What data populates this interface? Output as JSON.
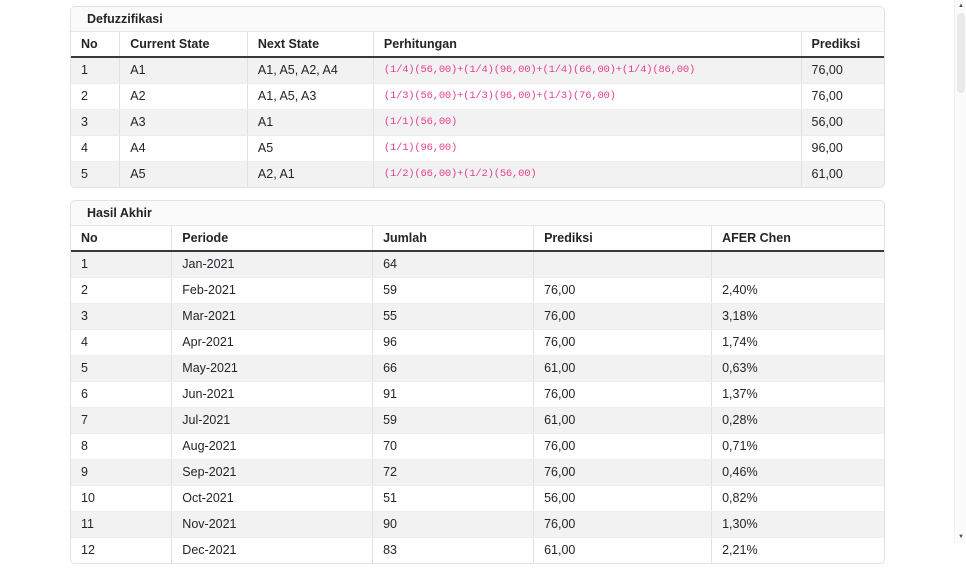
{
  "page": {
    "background": "#ffffff",
    "code_text_color": "#e83e8c",
    "stripe_color": "#f2f2f2"
  },
  "tables": [
    {
      "id": "defuzzifikasi",
      "title": "Defuzzifikasi",
      "columns": [
        "No",
        "Current State",
        "Next State",
        "Perhitungan",
        "Prediksi"
      ],
      "col_widths": [
        "6%",
        "15.7%",
        "15.5%",
        "52.6%",
        "10.2%"
      ],
      "code_col": 3,
      "rows": [
        [
          "1",
          "A1",
          "A1, A5, A2, A4",
          "(1/4)(56,00)+(1/4)(96,00)+(1/4)(66,00)+(1/4)(86,00)",
          "76,00"
        ],
        [
          "2",
          "A2",
          "A1, A5, A3",
          "(1/3)(56,00)+(1/3)(96,00)+(1/3)(76,00)",
          "76,00"
        ],
        [
          "3",
          "A3",
          "A1",
          "(1/1)(56,00)",
          "56,00"
        ],
        [
          "4",
          "A4",
          "A5",
          "(1/1)(96,00)",
          "96,00"
        ],
        [
          "5",
          "A5",
          "A2, A1",
          "(1/2)(66,00)+(1/2)(56,00)",
          "61,00"
        ]
      ]
    },
    {
      "id": "hasil-akhir",
      "title": "Hasil Akhir",
      "columns": [
        "No",
        "Periode",
        "Jumlah",
        "Prediksi",
        "AFER Chen"
      ],
      "col_widths": [
        "12.4%",
        "24.7%",
        "19.8%",
        "21.9%",
        "21.2%"
      ],
      "code_col": -1,
      "rows": [
        [
          "1",
          "Jan-2021",
          "64",
          "",
          ""
        ],
        [
          "2",
          "Feb-2021",
          "59",
          "76,00",
          "2,40%"
        ],
        [
          "3",
          "Mar-2021",
          "55",
          "76,00",
          "3,18%"
        ],
        [
          "4",
          "Apr-2021",
          "96",
          "76,00",
          "1,74%"
        ],
        [
          "5",
          "May-2021",
          "66",
          "61,00",
          "0,63%"
        ],
        [
          "6",
          "Jun-2021",
          "91",
          "76,00",
          "1,37%"
        ],
        [
          "7",
          "Jul-2021",
          "59",
          "61,00",
          "0,28%"
        ],
        [
          "8",
          "Aug-2021",
          "70",
          "76,00",
          "0,71%"
        ],
        [
          "9",
          "Sep-2021",
          "72",
          "76,00",
          "0,46%"
        ],
        [
          "10",
          "Oct-2021",
          "51",
          "56,00",
          "0,82%"
        ],
        [
          "11",
          "Nov-2021",
          "90",
          "76,00",
          "1,30%"
        ],
        [
          "12",
          "Dec-2021",
          "83",
          "61,00",
          "2,21%"
        ]
      ]
    }
  ],
  "scrollbar": {
    "up_arrow": "▲",
    "down_arrow": "▼"
  }
}
